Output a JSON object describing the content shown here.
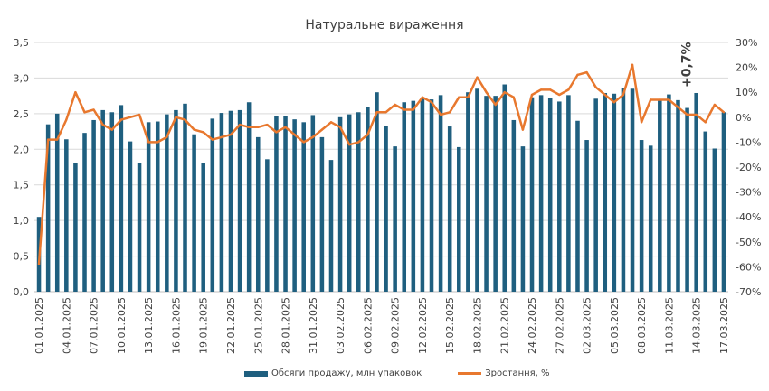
{
  "colors": {
    "bar": "#1f5f7f",
    "line": "#e8782e",
    "grid": "#d9d9d9",
    "text": "#404040"
  },
  "chart_data": {
    "type": "bar+line",
    "title": "Натуральне вираження",
    "annotation": "+0,7%",
    "categories": [
      "01.01.2025",
      "02.01.2025",
      "03.01.2025",
      "04.01.2025",
      "05.01.2025",
      "06.01.2025",
      "07.01.2025",
      "08.01.2025",
      "09.01.2025",
      "10.01.2025",
      "11.01.2025",
      "12.01.2025",
      "13.01.2025",
      "14.01.2025",
      "15.01.2025",
      "16.01.2025",
      "17.01.2025",
      "18.01.2025",
      "19.01.2025",
      "20.01.2025",
      "21.01.2025",
      "22.01.2025",
      "23.01.2025",
      "24.01.2025",
      "25.01.2025",
      "26.01.2025",
      "27.01.2025",
      "28.01.2025",
      "29.01.2025",
      "30.01.2025",
      "31.01.2025",
      "01.02.2025",
      "02.02.2025",
      "03.02.2025",
      "04.02.2025",
      "05.02.2025",
      "06.02.2025",
      "07.02.2025",
      "08.02.2025",
      "09.02.2025",
      "10.02.2025",
      "11.02.2025",
      "12.02.2025",
      "13.02.2025",
      "14.02.2025",
      "15.02.2025",
      "16.02.2025",
      "17.02.2025",
      "18.02.2025",
      "19.02.2025",
      "20.02.2025",
      "21.02.2025",
      "22.02.2025",
      "23.02.2025",
      "24.02.2025",
      "25.02.2025",
      "26.02.2025",
      "27.02.2025",
      "28.02.2025",
      "01.03.2025",
      "02.03.2025",
      "03.03.2025",
      "04.03.2025",
      "05.03.2025",
      "06.03.2025",
      "07.03.2025",
      "08.03.2025",
      "09.03.2025",
      "10.03.2025",
      "11.03.2025",
      "12.03.2025",
      "13.03.2025",
      "14.03.2025",
      "15.03.2025",
      "16.03.2025",
      "17.03.2025"
    ],
    "tick_labels": [
      "01.01.2025",
      "04.01.2025",
      "07.01.2025",
      "10.01.2025",
      "13.01.2025",
      "16.01.2025",
      "19.01.2025",
      "22.01.2025",
      "25.01.2025",
      "28.01.2025",
      "31.01.2025",
      "03.02.2025",
      "06.02.2025",
      "09.02.2025",
      "12.02.2025",
      "15.02.2025",
      "18.02.2025",
      "21.02.2025",
      "24.02.2025",
      "27.02.2025",
      "02.03.2025",
      "05.03.2025",
      "08.03.2025",
      "11.03.2025",
      "14.03.2025",
      "17.03.2025"
    ],
    "series": [
      {
        "name": "Обсяги продажу, млн упаковок",
        "type": "bar",
        "axis": "left",
        "values": [
          1.05,
          2.35,
          2.5,
          2.14,
          1.81,
          2.23,
          2.41,
          2.55,
          2.52,
          2.62,
          2.11,
          1.81,
          2.38,
          2.39,
          2.49,
          2.55,
          2.64,
          2.21,
          1.81,
          2.43,
          2.51,
          2.54,
          2.55,
          2.66,
          2.17,
          1.86,
          2.46,
          2.47,
          2.42,
          2.38,
          2.48,
          2.17,
          1.85,
          2.45,
          2.49,
          2.52,
          2.59,
          2.8,
          2.33,
          2.04,
          2.66,
          2.68,
          2.72,
          2.7,
          2.76,
          2.32,
          2.03,
          2.8,
          2.85,
          2.75,
          2.75,
          2.91,
          2.41,
          2.04,
          2.73,
          2.76,
          2.72,
          2.67,
          2.76,
          2.4,
          2.13,
          2.71,
          2.79,
          2.78,
          2.86,
          2.85,
          2.13,
          2.05,
          2.69,
          2.77,
          2.69,
          2.58,
          2.79,
          2.25,
          2.01,
          2.52
        ]
      },
      {
        "name": "Зростання, %",
        "type": "line",
        "axis": "right",
        "values": [
          -59,
          -9,
          -9,
          -1,
          10,
          2,
          3,
          -3,
          -5,
          -1,
          0,
          1,
          -10,
          -10,
          -8,
          0,
          -1,
          -5,
          -6,
          -9,
          -8,
          -7,
          -3,
          -4,
          -4,
          -3,
          -6,
          -4,
          -7,
          -10,
          -8,
          -5,
          -2,
          -4,
          -11,
          -10,
          -7,
          2,
          2,
          5,
          3,
          3,
          8,
          6,
          1,
          2,
          8,
          8,
          16,
          10,
          5,
          10,
          8,
          -5,
          9,
          11,
          11,
          9,
          11,
          17,
          18,
          12,
          9,
          6,
          9,
          21,
          -2,
          7,
          7,
          7,
          4,
          1,
          1,
          -2,
          5,
          2
        ]
      }
    ],
    "y_left": {
      "min": 0,
      "max": 3.5,
      "ticks": [
        "0,0",
        "0,5",
        "1,0",
        "1,5",
        "2,0",
        "2,5",
        "3,0",
        "3,5"
      ]
    },
    "y_right": {
      "min": -70,
      "max": 30,
      "ticks": [
        "-70%",
        "-60%",
        "-50%",
        "-40%",
        "-30%",
        "-20%",
        "-10%",
        "0%",
        "10%",
        "20%",
        "30%"
      ]
    },
    "grid": true,
    "legend_position": "bottom"
  }
}
